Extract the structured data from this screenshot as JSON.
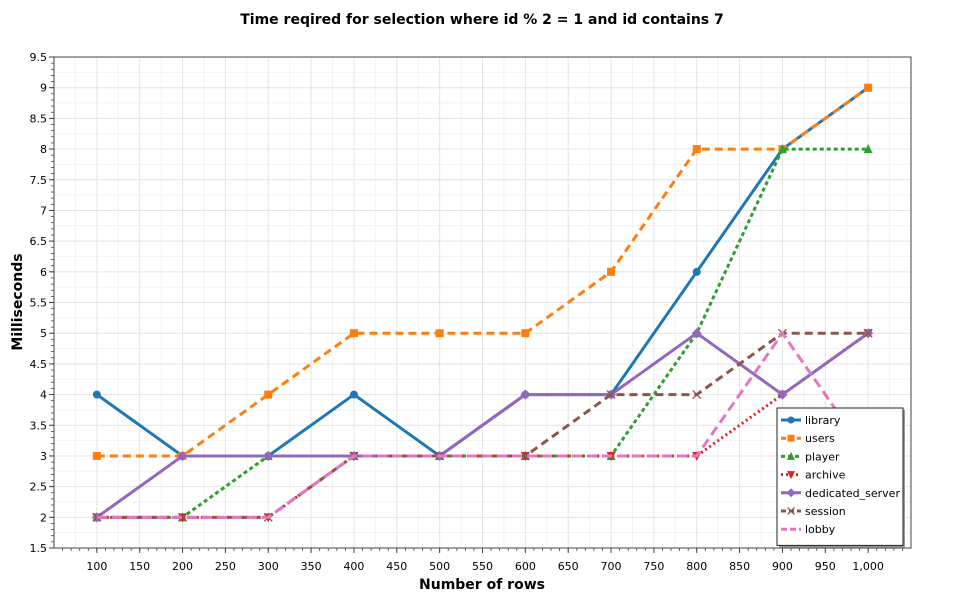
{
  "chart_data": {
    "type": "line",
    "title": "Time reqired for selection where id % 2 = 1 and id contains 7",
    "xlabel": "Number of rows",
    "ylabel": "Milliseconds",
    "xlim": [
      50,
      1050
    ],
    "ylim": [
      1.5,
      9.5
    ],
    "x": [
      100,
      200,
      300,
      400,
      500,
      600,
      700,
      800,
      900,
      1000
    ],
    "x_ticks": [
      100,
      150,
      200,
      250,
      300,
      350,
      400,
      450,
      500,
      550,
      600,
      650,
      700,
      750,
      800,
      850,
      900,
      950,
      1000
    ],
    "x_tick_labels": [
      "100",
      "150",
      "200",
      "250",
      "300",
      "350",
      "400",
      "450",
      "500",
      "550",
      "600",
      "650",
      "700",
      "750",
      "800",
      "850",
      "900",
      "950",
      "1,000"
    ],
    "y_ticks": [
      1.5,
      2,
      2.5,
      3,
      3.5,
      4,
      4.5,
      5,
      5.5,
      6,
      6.5,
      7,
      7.5,
      8,
      8.5,
      9,
      9.5
    ],
    "y_tick_labels": [
      "1.5",
      "2",
      "2.5",
      "3",
      "3.5",
      "4",
      "4.5",
      "5",
      "5.5",
      "6",
      "6.5",
      "7",
      "7.5",
      "8",
      "8.5",
      "9",
      "9.5"
    ],
    "grid": true,
    "legend_position": "bottom-right",
    "series": [
      {
        "name": "library",
        "color": "#1f77b4",
        "dash": "solid",
        "marker": "circle",
        "values": [
          4,
          3,
          3,
          4,
          3,
          4,
          4,
          6,
          8,
          9
        ]
      },
      {
        "name": "users",
        "color": "#ff7f0e",
        "dash": "dashed",
        "marker": "square",
        "values": [
          3,
          3,
          4,
          5,
          5,
          5,
          6,
          8,
          8,
          9
        ]
      },
      {
        "name": "player",
        "color": "#2ca02c",
        "dash": "dotted",
        "marker": "triangle-up",
        "values": [
          2,
          2,
          3,
          3,
          3,
          3,
          3,
          5,
          8,
          8
        ]
      },
      {
        "name": "archive",
        "color": "#d62728",
        "dash": "dot",
        "marker": "triangle-down",
        "values": [
          2,
          2,
          2,
          3,
          3,
          3,
          3,
          3,
          4,
          5
        ]
      },
      {
        "name": "dedicated_server",
        "color": "#9467bd",
        "dash": "solid",
        "marker": "diamond",
        "values": [
          2,
          3,
          3,
          3,
          3,
          4,
          4,
          5,
          4,
          5
        ]
      },
      {
        "name": "session",
        "color": "#8c564b",
        "dash": "dashed",
        "marker": "x",
        "values": [
          2,
          2,
          2,
          3,
          3,
          3,
          4,
          4,
          5,
          5
        ]
      },
      {
        "name": "lobby",
        "color": "#e377c2",
        "dash": "dashed-long",
        "marker": "none",
        "values": [
          2,
          2,
          2,
          3,
          3,
          3,
          3,
          3,
          5,
          3
        ]
      }
    ]
  }
}
